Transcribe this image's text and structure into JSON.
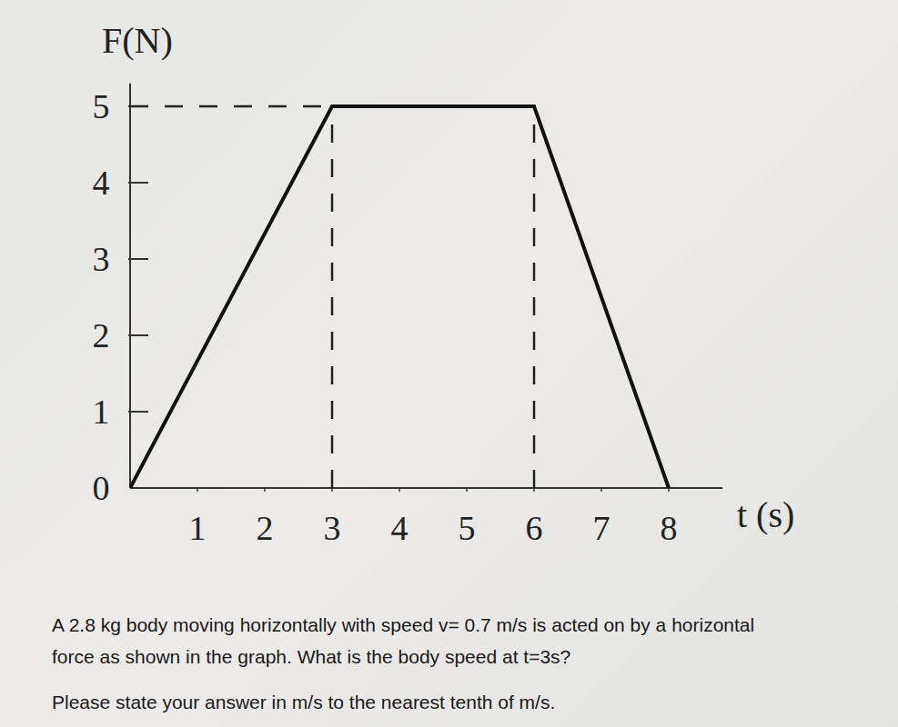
{
  "chart_data": {
    "type": "line",
    "y_label": "F(N)",
    "x_label": "t (s)",
    "x": [
      0,
      3,
      6,
      8
    ],
    "values": [
      0,
      5,
      5,
      0
    ],
    "xlim": [
      0,
      8.8
    ],
    "xticks": [
      1,
      2,
      3,
      4,
      5,
      6,
      7,
      8
    ],
    "ylim": [
      0,
      5.3
    ],
    "yticks": [
      0,
      1,
      2,
      3,
      4,
      5
    ],
    "grid": false,
    "color": "#111111",
    "line_style": "solid"
  },
  "question": {
    "lines": [
      "A 2.8 kg body moving horizontally with speed v= 0.7 m/s is acted on by a horizontal",
      "force as shown in the graph. What is the body speed at t=3s?"
    ],
    "instruction": "Please state your answer in m/s to the nearest tenth of m/s."
  }
}
